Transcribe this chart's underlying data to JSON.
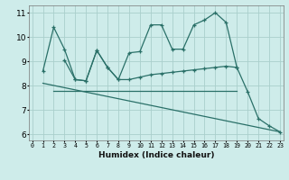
{
  "line1_x": [
    1,
    2,
    3,
    4,
    5,
    6,
    7,
    8,
    9,
    10,
    11,
    12,
    13,
    14,
    15,
    16,
    17,
    18,
    19,
    20,
    21,
    22,
    23
  ],
  "line1_y": [
    8.6,
    10.4,
    9.5,
    8.25,
    8.2,
    9.45,
    8.75,
    8.25,
    9.35,
    9.4,
    10.5,
    10.5,
    9.5,
    9.5,
    10.5,
    10.7,
    11.0,
    10.6,
    8.75,
    7.75,
    6.65,
    6.35,
    6.1
  ],
  "line2_x": [
    3,
    4,
    5,
    6,
    7,
    8,
    9,
    10,
    11,
    12,
    13,
    14,
    15,
    16,
    17,
    18,
    19
  ],
  "line2_y": [
    9.05,
    8.25,
    8.2,
    9.45,
    8.75,
    8.25,
    8.25,
    8.35,
    8.45,
    8.5,
    8.55,
    8.6,
    8.65,
    8.7,
    8.75,
    8.8,
    8.75
  ],
  "line3_x": [
    2,
    19
  ],
  "line3_y": [
    7.78,
    7.78
  ],
  "line4_x": [
    1,
    23
  ],
  "line4_y": [
    8.1,
    6.1
  ],
  "color": "#2a7068",
  "bg_color": "#ceecea",
  "grid_color": "#aacfcc",
  "ylim": [
    5.75,
    11.3
  ],
  "xlim": [
    -0.3,
    23.3
  ],
  "yticks": [
    6,
    7,
    8,
    9,
    10,
    11
  ],
  "xticks": [
    0,
    1,
    2,
    3,
    4,
    5,
    6,
    7,
    8,
    9,
    10,
    11,
    12,
    13,
    14,
    15,
    16,
    17,
    18,
    19,
    20,
    21,
    22,
    23
  ],
  "xlabel": "Humidex (Indice chaleur)",
  "marker": "+",
  "markersize": 3.5,
  "linewidth": 0.9
}
